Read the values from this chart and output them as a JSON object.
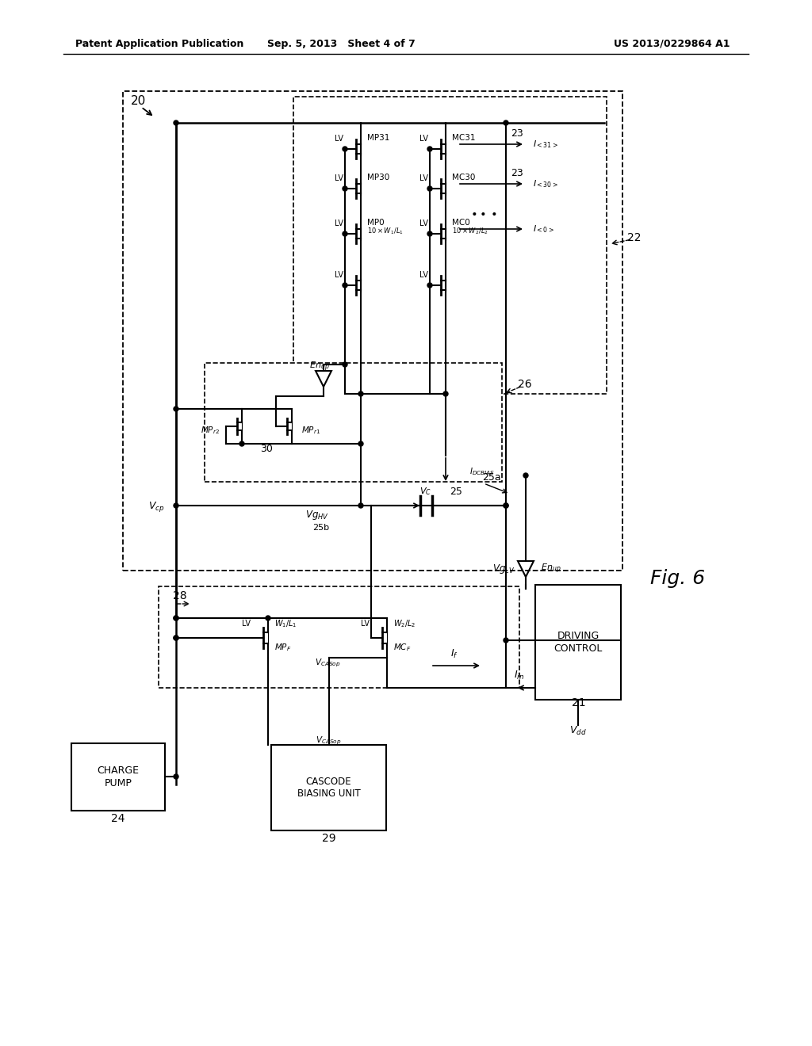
{
  "header_left": "Patent Application Publication",
  "header_mid": "Sep. 5, 2013   Sheet 4 of 7",
  "header_right": "US 2013/0229864 A1",
  "fig_label": "Fig. 6",
  "bg_color": "#ffffff",
  "line_color": "#000000",
  "text_color": "#000000"
}
